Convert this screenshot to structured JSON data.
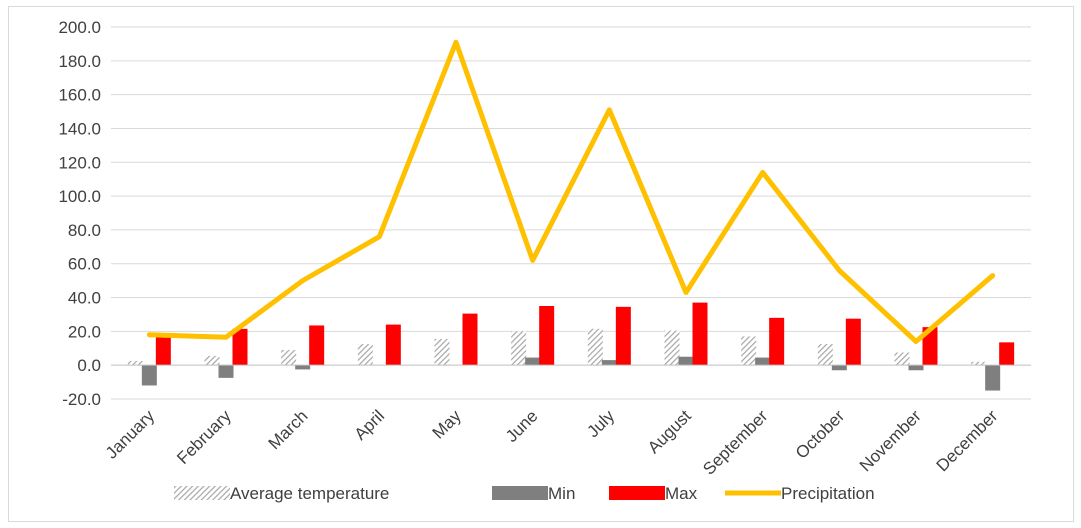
{
  "chart_data": {
    "type": "bar",
    "categories": [
      "January",
      "February",
      "March",
      "April",
      "May",
      "June",
      "July",
      "August",
      "September",
      "October",
      "November",
      "December"
    ],
    "ylim": [
      -20,
      200
    ],
    "yticks": [
      "-20.0",
      "0.0",
      "20.0",
      "40.0",
      "60.0",
      "80.0",
      "100.0",
      "120.0",
      "140.0",
      "160.0",
      "180.0",
      "200.0"
    ],
    "grid": true,
    "legend_position": "bottom",
    "series": [
      {
        "name": "Average temperature",
        "type": "bar",
        "pattern": "hatched",
        "color": "#a6a6a6",
        "values": [
          2.5,
          5.5,
          9.0,
          12.5,
          15.5,
          20.0,
          21.5,
          20.5,
          17.0,
          12.5,
          7.5,
          2.0
        ]
      },
      {
        "name": "Min",
        "type": "bar",
        "color": "#7f7f7f",
        "values": [
          -12.0,
          -7.5,
          -2.5,
          0.0,
          0.0,
          4.5,
          3.0,
          5.0,
          4.5,
          -3.0,
          -3.0,
          -15.0
        ]
      },
      {
        "name": "Max",
        "type": "bar",
        "color": "#ff0000",
        "values": [
          17.0,
          21.5,
          23.5,
          24.0,
          30.5,
          35.0,
          34.5,
          37.0,
          28.0,
          27.5,
          22.5,
          13.5
        ]
      },
      {
        "name": "Precipitation",
        "type": "line",
        "color": "#ffc000",
        "values": [
          18.0,
          16.5,
          50.0,
          76.0,
          191.0,
          62.0,
          151.0,
          43.0,
          114.0,
          56.0,
          14.0,
          53.0
        ]
      }
    ]
  }
}
